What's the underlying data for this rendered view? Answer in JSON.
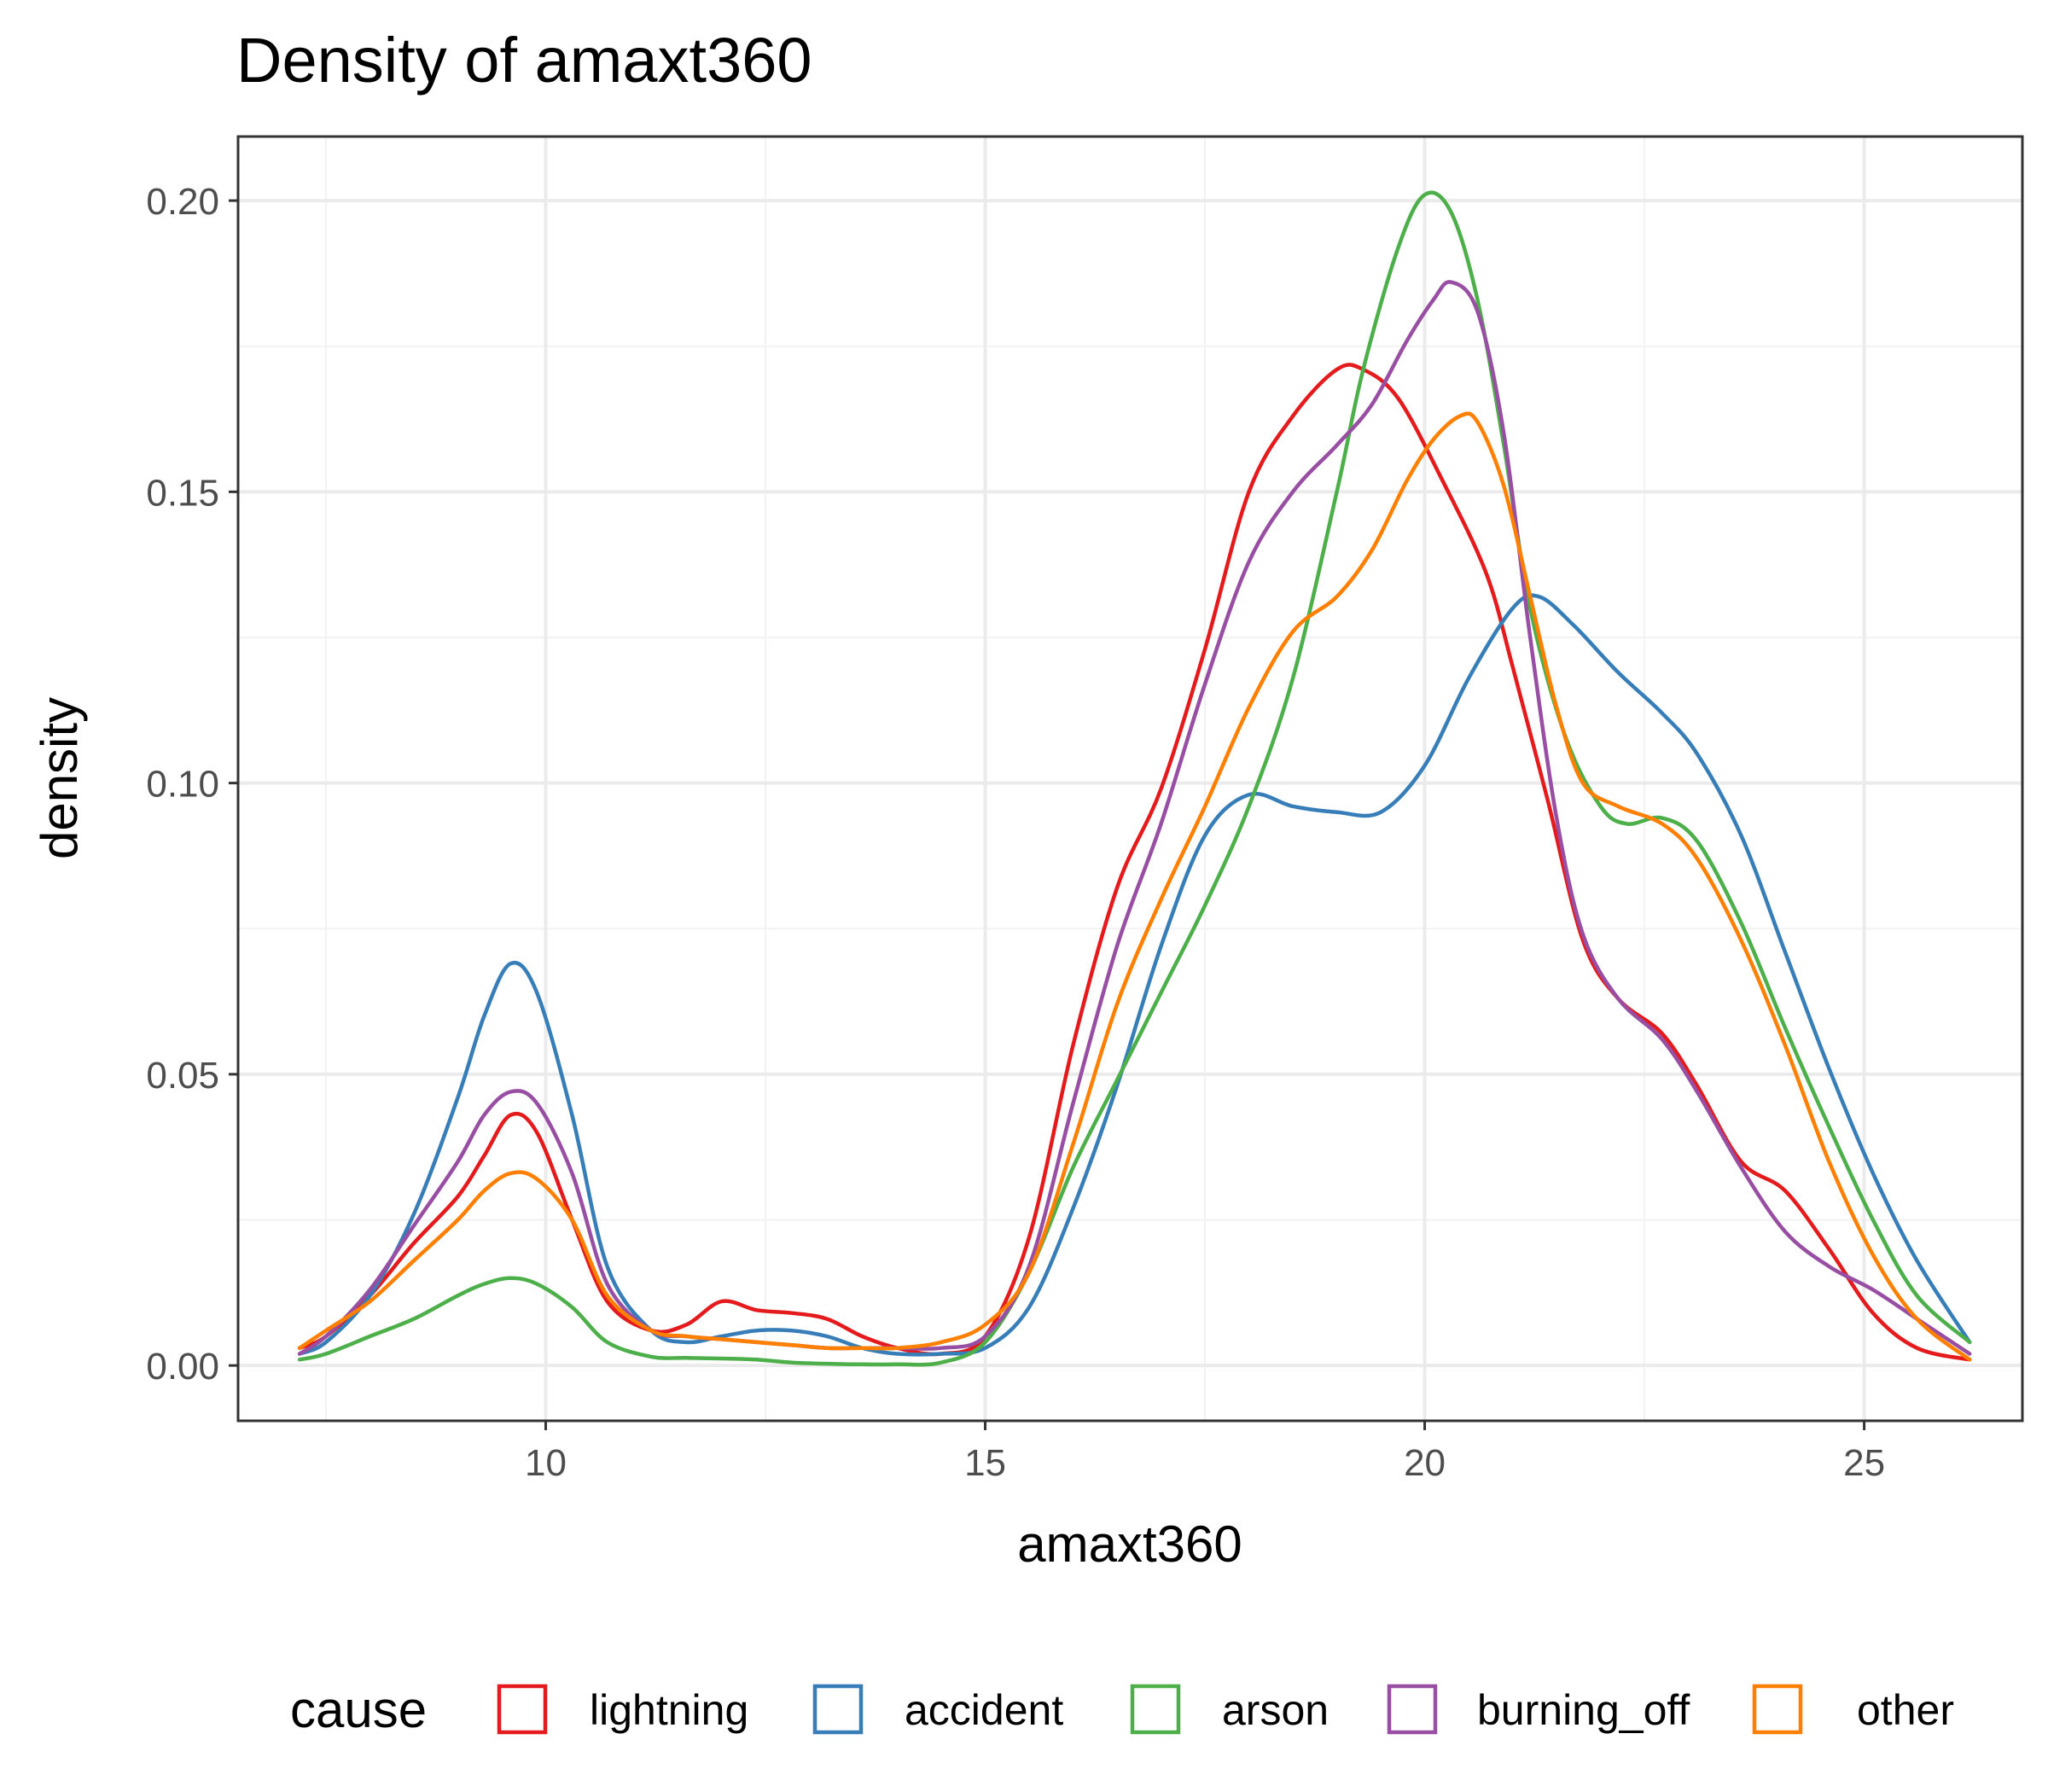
{
  "chart_data": {
    "type": "line",
    "title": "Density of amaxt360",
    "xlabel": "amaxt360",
    "ylabel": "density",
    "xlim": [
      6.5,
      26.8
    ],
    "ylim": [
      -0.0095,
      0.211
    ],
    "x_ticks": [
      10,
      15,
      20,
      25
    ],
    "x_tick_labels": [
      "10",
      "15",
      "20",
      "25"
    ],
    "y_ticks": [
      0.0,
      0.05,
      0.1,
      0.15,
      0.2
    ],
    "y_tick_labels": [
      "0.00",
      "0.05",
      "0.10",
      "0.15",
      "0.20"
    ],
    "grid": true,
    "legend": {
      "title": "cause",
      "position": "bottom"
    },
    "series": [
      {
        "name": "lightning",
        "color": "#E41A1C",
        "x": [
          7.2,
          7.5,
          8,
          8.5,
          9,
          9.3,
          9.6,
          9.9,
          10.3,
          10.7,
          11.2,
          11.6,
          12,
          12.4,
          12.8,
          13.2,
          13.6,
          14,
          14.5,
          15,
          15.5,
          16,
          16.5,
          17,
          17.5,
          18,
          18.5,
          19,
          19.3,
          19.7,
          20.2,
          20.7,
          21,
          21.4,
          21.8,
          22.2,
          22.7,
          23.1,
          23.6,
          24.1,
          24.6,
          25.1,
          25.6,
          26.2
        ],
        "y": [
          0.003,
          0.005,
          0.012,
          0.021,
          0.029,
          0.036,
          0.043,
          0.04,
          0.025,
          0.011,
          0.006,
          0.007,
          0.011,
          0.0095,
          0.009,
          0.008,
          0.005,
          0.003,
          0.002,
          0.005,
          0.022,
          0.055,
          0.082,
          0.099,
          0.123,
          0.15,
          0.163,
          0.171,
          0.171,
          0.166,
          0.152,
          0.136,
          0.12,
          0.097,
          0.073,
          0.063,
          0.057,
          0.048,
          0.035,
          0.03,
          0.02,
          0.009,
          0.003,
          0.001
        ]
      },
      {
        "name": "accident",
        "color": "#377EB8",
        "x": [
          7.2,
          7.5,
          8,
          8.5,
          9,
          9.3,
          9.6,
          9.9,
          10.3,
          10.7,
          11.2,
          11.6,
          12,
          12.4,
          12.8,
          13.2,
          13.6,
          14,
          14.5,
          15,
          15.5,
          16,
          16.5,
          17,
          17.5,
          18,
          18.5,
          19,
          19.5,
          20,
          20.5,
          21,
          21.3,
          21.7,
          22.2,
          22.7,
          23.1,
          23.6,
          24.1,
          24.6,
          25.1,
          25.6,
          26.2
        ],
        "y": [
          0.002,
          0.004,
          0.012,
          0.026,
          0.046,
          0.06,
          0.069,
          0.064,
          0.043,
          0.017,
          0.006,
          0.004,
          0.005,
          0.006,
          0.006,
          0.005,
          0.003,
          0.002,
          0.002,
          0.003,
          0.01,
          0.027,
          0.048,
          0.072,
          0.091,
          0.098,
          0.096,
          0.095,
          0.095,
          0.103,
          0.118,
          0.13,
          0.132,
          0.127,
          0.119,
          0.112,
          0.105,
          0.091,
          0.071,
          0.051,
          0.033,
          0.018,
          0.004
        ]
      },
      {
        "name": "arson",
        "color": "#4DAF4A",
        "x": [
          7.2,
          7.5,
          8,
          8.5,
          9,
          9.3,
          9.6,
          9.9,
          10.3,
          10.7,
          11.2,
          11.6,
          12,
          12.4,
          12.8,
          13.2,
          13.6,
          14,
          14.5,
          15,
          15.5,
          16,
          16.5,
          17,
          17.5,
          18,
          18.5,
          19,
          19.3,
          19.7,
          20,
          20.3,
          20.6,
          20.9,
          21.2,
          21.6,
          22,
          22.3,
          22.7,
          23.1,
          23.6,
          24.1,
          24.6,
          25.1,
          25.6,
          26.2
        ],
        "y": [
          0.001,
          0.002,
          0.005,
          0.008,
          0.012,
          0.014,
          0.015,
          0.014,
          0.01,
          0.004,
          0.0015,
          0.0013,
          0.0012,
          0.001,
          0.0005,
          0.0003,
          0.0002,
          0.0002,
          0.0005,
          0.004,
          0.016,
          0.034,
          0.049,
          0.064,
          0.079,
          0.096,
          0.118,
          0.15,
          0.171,
          0.192,
          0.201,
          0.198,
          0.183,
          0.158,
          0.13,
          0.108,
          0.096,
          0.093,
          0.094,
          0.09,
          0.076,
          0.058,
          0.041,
          0.025,
          0.012,
          0.004
        ]
      },
      {
        "name": "burning_off",
        "color": "#984EA3",
        "x": [
          7.2,
          7.5,
          8,
          8.5,
          9,
          9.3,
          9.6,
          9.9,
          10.3,
          10.7,
          11.2,
          11.6,
          12,
          12.4,
          12.8,
          13.2,
          13.6,
          14,
          14.5,
          15,
          15.5,
          16,
          16.5,
          17,
          17.5,
          18,
          18.5,
          19,
          19.4,
          19.8,
          20.1,
          20.3,
          20.6,
          20.9,
          21.2,
          21.5,
          21.8,
          22.2,
          22.7,
          23.1,
          23.6,
          24.1,
          24.6,
          25.1,
          25.6,
          26.2
        ],
        "y": [
          0.002,
          0.005,
          0.013,
          0.024,
          0.035,
          0.043,
          0.047,
          0.045,
          0.033,
          0.014,
          0.006,
          0.005,
          0.0045,
          0.004,
          0.0035,
          0.003,
          0.003,
          0.003,
          0.003,
          0.005,
          0.017,
          0.045,
          0.072,
          0.093,
          0.117,
          0.138,
          0.15,
          0.158,
          0.165,
          0.176,
          0.183,
          0.186,
          0.181,
          0.16,
          0.125,
          0.094,
          0.074,
          0.063,
          0.056,
          0.047,
          0.034,
          0.023,
          0.017,
          0.013,
          0.008,
          0.002
        ]
      },
      {
        "name": "other",
        "color": "#FF7F00",
        "x": [
          7.2,
          7.5,
          8,
          8.5,
          9,
          9.3,
          9.6,
          9.9,
          10.3,
          10.7,
          11.2,
          11.6,
          12,
          12.4,
          12.8,
          13.2,
          13.6,
          14,
          14.5,
          15,
          15.5,
          16,
          16.5,
          17,
          17.5,
          18,
          18.5,
          19,
          19.4,
          19.8,
          20.1,
          20.4,
          20.6,
          20.9,
          21.2,
          21.5,
          21.8,
          22.2,
          22.7,
          23.1,
          23.6,
          24.1,
          24.6,
          25.1,
          25.6,
          26.2
        ],
        "y": [
          0.003,
          0.006,
          0.011,
          0.018,
          0.025,
          0.03,
          0.033,
          0.032,
          0.025,
          0.012,
          0.006,
          0.005,
          0.0045,
          0.004,
          0.0035,
          0.003,
          0.003,
          0.003,
          0.004,
          0.007,
          0.016,
          0.038,
          0.062,
          0.08,
          0.096,
          0.113,
          0.126,
          0.132,
          0.14,
          0.152,
          0.159,
          0.163,
          0.162,
          0.151,
          0.132,
          0.113,
          0.1,
          0.096,
          0.093,
          0.087,
          0.073,
          0.055,
          0.035,
          0.019,
          0.008,
          0.001
        ]
      }
    ]
  }
}
